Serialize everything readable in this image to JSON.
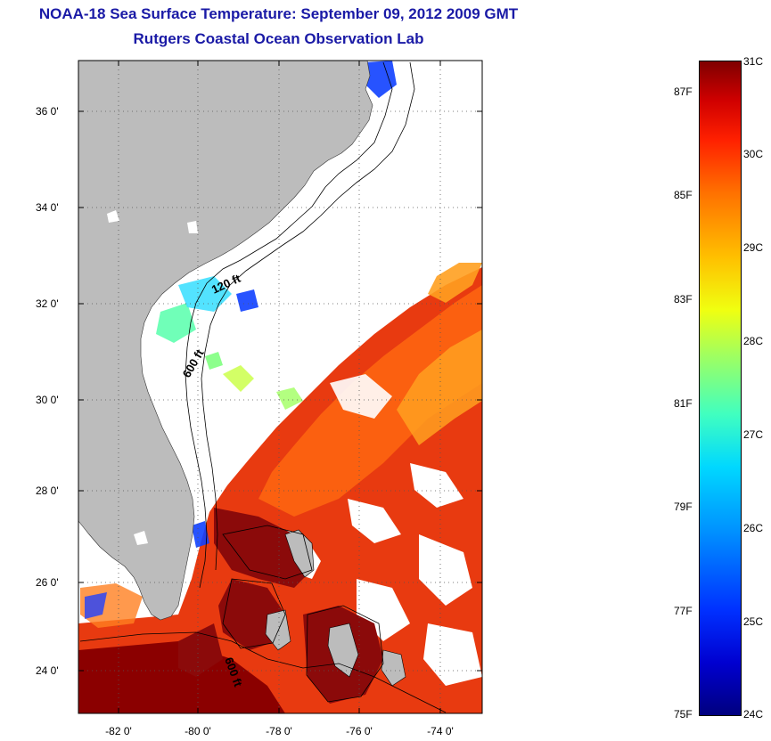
{
  "header": {
    "title": "NOAA-18 Sea Surface Temperature:  September 09, 2012 2009 GMT",
    "subtitle": "Rutgers Coastal Ocean Observation Lab"
  },
  "map": {
    "y_labels": [
      "36 0'",
      "34 0'",
      "32 0'",
      "30 0'",
      "28 0'",
      "26 0'",
      "24 0'"
    ],
    "x_labels": [
      "-82 0'",
      "-80 0'",
      "-78 0'",
      "-76 0'",
      "-74 0'"
    ],
    "isobaths": [
      "120 ft",
      "600 ft",
      "600 ft"
    ],
    "land_color": "#bcbcbc",
    "grid": "dotted"
  },
  "colorbar": {
    "celsius": [
      "31C",
      "30C",
      "29C",
      "28C",
      "27C",
      "26C",
      "25C",
      "24C"
    ],
    "fahrenheit": [
      "87F",
      "85F",
      "83F",
      "81F",
      "79F",
      "77F",
      "75F"
    ],
    "min_c": 24,
    "max_c": 31
  }
}
